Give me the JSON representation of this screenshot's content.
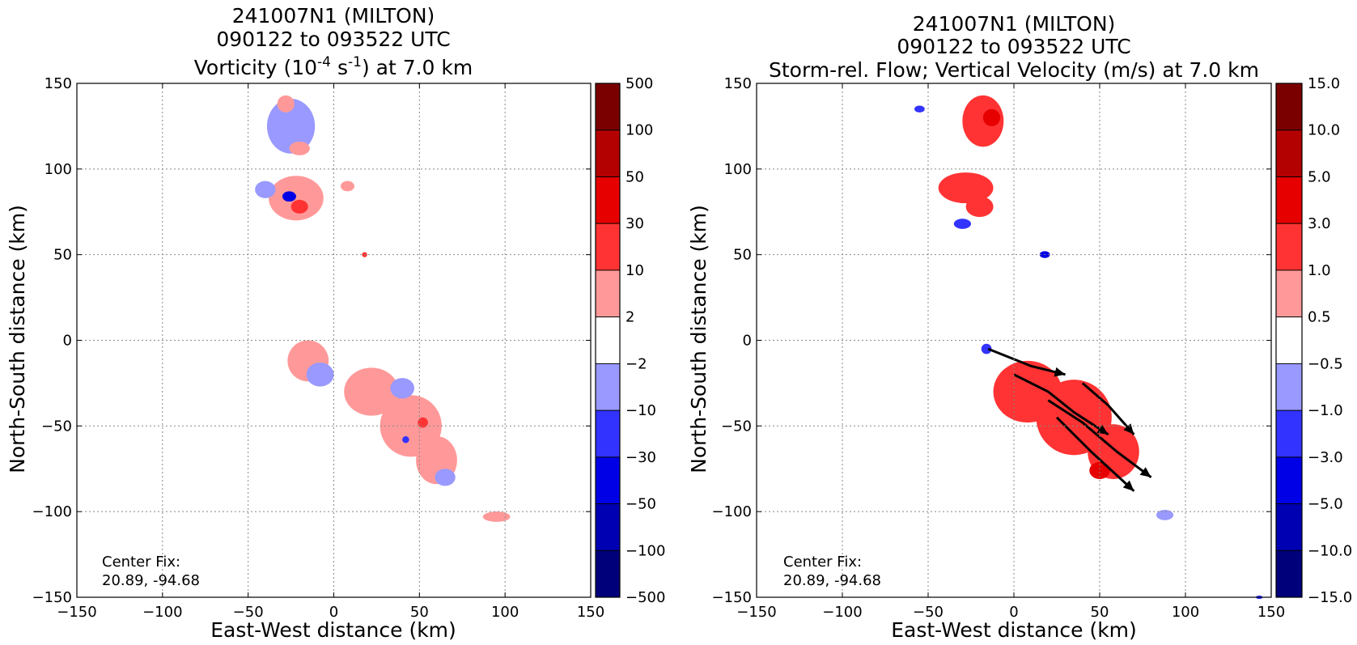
{
  "chart_data": [
    {
      "type": "heatmap",
      "title_lines": [
        "241007N1 (MILTON)",
        "090122 to 093522 UTC",
        "Vorticity (10^-4 s^-1) at 7.0 km"
      ],
      "title_line3_parts": {
        "pre": "Vorticity (10",
        "sup1": "-4",
        "mid": " s",
        "sup2": "-1",
        "post": ") at 7.0 km"
      },
      "xlabel": "East-West distance (km)",
      "ylabel": "North-South distance (km)",
      "xlim": [
        -150,
        150
      ],
      "ylim": [
        -150,
        150
      ],
      "xticks": [
        -150,
        -100,
        -50,
        0,
        50,
        100,
        150
      ],
      "yticks": [
        -150,
        -100,
        -50,
        0,
        50,
        100,
        150
      ],
      "xtick_labels": [
        "−150",
        "−100",
        "−50",
        "0",
        "50",
        "100",
        "150"
      ],
      "ytick_labels": [
        "−150",
        "−100",
        "−50",
        "0",
        "50",
        "100",
        "150"
      ],
      "grid": true,
      "annotation": [
        "Center Fix:",
        "20.89, -94.68"
      ],
      "colorbar": {
        "labels": [
          "500",
          "100",
          "50",
          "30",
          "10",
          "2",
          "−2",
          "−10",
          "−30",
          "−50",
          "−100",
          "−500"
        ],
        "colors": [
          "#7a0000",
          "#b30000",
          "#e60000",
          "#ff3333",
          "#ff9999",
          "#ffffff",
          "#9999ff",
          "#3333ff",
          "#0000e6",
          "#0000b3",
          "#00007a"
        ]
      },
      "regions": [
        {
          "x": -25,
          "y": 125,
          "rx": 14,
          "ry": 16,
          "color": "#9999ff"
        },
        {
          "x": -28,
          "y": 138,
          "rx": 5,
          "ry": 5,
          "color": "#ff9999"
        },
        {
          "x": -20,
          "y": 112,
          "rx": 6,
          "ry": 4,
          "color": "#ff9999"
        },
        {
          "x": -22,
          "y": 83,
          "rx": 16,
          "ry": 13,
          "color": "#ff9999"
        },
        {
          "x": -40,
          "y": 88,
          "rx": 6,
          "ry": 5,
          "color": "#9999ff"
        },
        {
          "x": -26,
          "y": 84,
          "rx": 4,
          "ry": 3,
          "color": "#0000e6"
        },
        {
          "x": -20,
          "y": 78,
          "rx": 5,
          "ry": 4,
          "color": "#ff3333"
        },
        {
          "x": 8,
          "y": 90,
          "rx": 4,
          "ry": 3,
          "color": "#ff9999"
        },
        {
          "x": 18,
          "y": 50,
          "rx": 1.5,
          "ry": 1.5,
          "color": "#ff3333"
        },
        {
          "x": -15,
          "y": -12,
          "rx": 12,
          "ry": 12,
          "color": "#ff9999"
        },
        {
          "x": -8,
          "y": -20,
          "rx": 8,
          "ry": 7,
          "color": "#9999ff"
        },
        {
          "x": 22,
          "y": -30,
          "rx": 16,
          "ry": 14,
          "color": "#ff9999"
        },
        {
          "x": 45,
          "y": -50,
          "rx": 18,
          "ry": 18,
          "color": "#ff9999"
        },
        {
          "x": 60,
          "y": -70,
          "rx": 12,
          "ry": 14,
          "color": "#ff9999"
        },
        {
          "x": 40,
          "y": -28,
          "rx": 7,
          "ry": 6,
          "color": "#9999ff"
        },
        {
          "x": 65,
          "y": -80,
          "rx": 6,
          "ry": 5,
          "color": "#9999ff"
        },
        {
          "x": 52,
          "y": -48,
          "rx": 3,
          "ry": 3,
          "color": "#ff3333"
        },
        {
          "x": 42,
          "y": -58,
          "rx": 2,
          "ry": 2,
          "color": "#3333ff"
        },
        {
          "x": 95,
          "y": -103,
          "rx": 8,
          "ry": 3,
          "color": "#ff9999"
        }
      ]
    },
    {
      "type": "heatmap",
      "title_lines": [
        "241007N1 (MILTON)",
        "090122 to 093522 UTC",
        "Storm-rel. Flow; Vertical Velocity (m/s) at 7.0 km"
      ],
      "xlabel": "East-West distance (km)",
      "ylabel": "North-South distance (km)",
      "xlim": [
        -150,
        150
      ],
      "ylim": [
        -150,
        150
      ],
      "xticks": [
        -150,
        -100,
        -50,
        0,
        50,
        100,
        150
      ],
      "yticks": [
        -150,
        -100,
        -50,
        0,
        50,
        100,
        150
      ],
      "xtick_labels": [
        "−150",
        "−100",
        "−50",
        "0",
        "50",
        "100",
        "150"
      ],
      "ytick_labels": [
        "−150",
        "−100",
        "−50",
        "0",
        "50",
        "100",
        "150"
      ],
      "grid": true,
      "annotation": [
        "Center Fix:",
        "20.89, -94.68"
      ],
      "colorbar": {
        "labels": [
          "15.0",
          "10.0",
          "5.0",
          "3.0",
          "1.0",
          "0.5",
          "−0.5",
          "−1.0",
          "−3.0",
          "−5.0",
          "−10.0",
          "−15.0"
        ],
        "colors": [
          "#7a0000",
          "#b30000",
          "#e60000",
          "#ff3333",
          "#ff9999",
          "#ffffff",
          "#9999ff",
          "#3333ff",
          "#0000e6",
          "#0000b3",
          "#00007a"
        ]
      },
      "regions": [
        {
          "x": -18,
          "y": 128,
          "rx": 12,
          "ry": 15,
          "color": "#ff3333"
        },
        {
          "x": -13,
          "y": 130,
          "rx": 5,
          "ry": 5,
          "color": "#e60000"
        },
        {
          "x": -28,
          "y": 89,
          "rx": 16,
          "ry": 9,
          "color": "#ff3333"
        },
        {
          "x": -20,
          "y": 78,
          "rx": 8,
          "ry": 6,
          "color": "#ff3333"
        },
        {
          "x": -30,
          "y": 68,
          "rx": 5,
          "ry": 3,
          "color": "#3333ff"
        },
        {
          "x": 18,
          "y": 50,
          "rx": 3,
          "ry": 2,
          "color": "#0000e6"
        },
        {
          "x": -55,
          "y": 135,
          "rx": 3,
          "ry": 2,
          "color": "#3333ff"
        },
        {
          "x": 8,
          "y": -30,
          "rx": 20,
          "ry": 18,
          "color": "#ff3333"
        },
        {
          "x": 35,
          "y": -45,
          "rx": 22,
          "ry": 22,
          "color": "#ff3333"
        },
        {
          "x": 58,
          "y": -65,
          "rx": 15,
          "ry": 16,
          "color": "#ff3333"
        },
        {
          "x": 50,
          "y": -76,
          "rx": 6,
          "ry": 5,
          "color": "#e60000"
        },
        {
          "x": -16,
          "y": -5,
          "rx": 3,
          "ry": 3,
          "color": "#3333ff"
        },
        {
          "x": 88,
          "y": -102,
          "rx": 5,
          "ry": 3,
          "color": "#9999ff"
        },
        {
          "x": 143,
          "y": -150,
          "rx": 2,
          "ry": 1,
          "color": "#3333ff"
        }
      ],
      "streamlines": [
        [
          [
            -15,
            -5
          ],
          [
            10,
            -15
          ],
          [
            30,
            -20
          ]
        ],
        [
          [
            0,
            -20
          ],
          [
            20,
            -30
          ],
          [
            35,
            -42
          ],
          [
            55,
            -55
          ]
        ],
        [
          [
            20,
            -35
          ],
          [
            40,
            -48
          ],
          [
            60,
            -65
          ],
          [
            80,
            -80
          ]
        ],
        [
          [
            25,
            -45
          ],
          [
            45,
            -65
          ],
          [
            70,
            -88
          ]
        ],
        [
          [
            40,
            -25
          ],
          [
            55,
            -38
          ],
          [
            70,
            -55
          ]
        ]
      ]
    }
  ]
}
